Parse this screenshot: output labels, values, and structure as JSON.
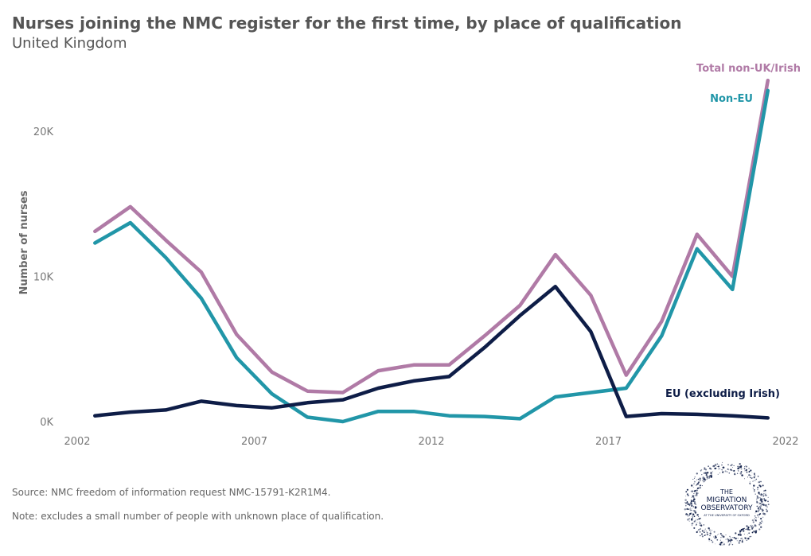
{
  "chart_data": {
    "type": "line",
    "title": "Nurses joining the NMC register for the first time, by place of qualification",
    "subtitle": "United Kingdom",
    "xlabel": "",
    "ylabel": "Number of nurses",
    "x": [
      2002.5,
      2003.5,
      2004.5,
      2005.5,
      2006.5,
      2007.5,
      2008.5,
      2009.5,
      2010.5,
      2011.5,
      2012.5,
      2013.5,
      2014.5,
      2015.5,
      2016.5,
      2017.5,
      2018.5,
      2019.5,
      2020.5,
      2021.5
    ],
    "xlim": [
      2002,
      2022
    ],
    "ylim": [
      0,
      24500
    ],
    "x_ticks": [
      {
        "value": 2002,
        "label": "2002"
      },
      {
        "value": 2007,
        "label": "2007"
      },
      {
        "value": 2012,
        "label": "2012"
      },
      {
        "value": 2017,
        "label": "2017"
      },
      {
        "value": 2022,
        "label": "2022"
      }
    ],
    "y_ticks": [
      {
        "value": 0,
        "label": "0K"
      },
      {
        "value": 10000,
        "label": "10K"
      },
      {
        "value": 20000,
        "label": "20K"
      }
    ],
    "series": [
      {
        "name": "Total non-UK/Irish",
        "color": "#b07aa6",
        "values": [
          13100,
          14800,
          12500,
          10300,
          6000,
          3400,
          2100,
          2000,
          3500,
          3900,
          3900,
          5900,
          8000,
          11500,
          8700,
          3200,
          6900,
          12900,
          10000,
          23500
        ]
      },
      {
        "name": "Non-EU",
        "color": "#2196a8",
        "values": [
          12300,
          13700,
          11300,
          8500,
          4400,
          1900,
          300,
          0,
          700,
          700,
          400,
          350,
          200,
          1700,
          2000,
          2300,
          5900,
          11900,
          9100,
          22800
        ]
      },
      {
        "name": "EU (excluding Irish)",
        "color": "#0e1d47",
        "values": [
          400,
          650,
          800,
          1400,
          1100,
          950,
          1300,
          1500,
          2300,
          2800,
          3100,
          5100,
          7300,
          9300,
          6200,
          350,
          550,
          500,
          400,
          250
        ]
      }
    ]
  },
  "footer": {
    "source": "Source: NMC freedom of information request NMC-15791-K2R1M4.",
    "note": "Note: excludes a small number of people with unknown place of qualification."
  },
  "logo": {
    "line1": "THE",
    "line2": "MIGRATION",
    "line3": "OBSERVATORY",
    "line4": "AT THE UNIVERSITY OF OXFORD",
    "color": "#0e1d47"
  }
}
